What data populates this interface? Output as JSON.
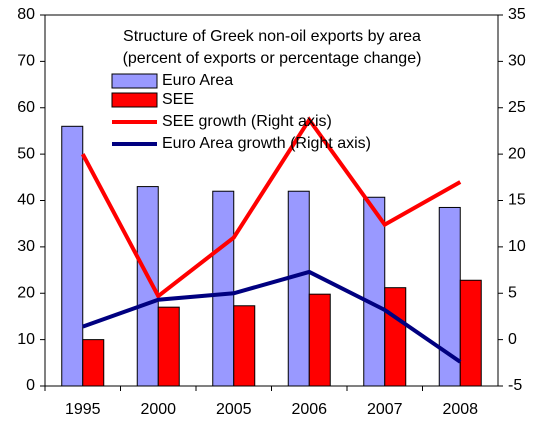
{
  "chart_data": {
    "type": "bar-line",
    "title": "Structure of Greek non-oil exports by area",
    "subtitle": "(percent of exports or percentage change)",
    "categories": [
      "1995",
      "2000",
      "2005",
      "2006",
      "2007",
      "2008"
    ],
    "series": [
      {
        "name": "Euro Area",
        "color": "#9999ff",
        "kind": "bar",
        "values": [
          56,
          43,
          42,
          42,
          40.7,
          38.5
        ]
      },
      {
        "name": "SEE",
        "color": "#ff0000",
        "kind": "bar",
        "values": [
          10,
          17,
          17.3,
          19.8,
          21.2,
          22.8
        ]
      },
      {
        "name": "SEE growth (Right axis)",
        "color": "#ff0000",
        "kind": "line",
        "axis": "y2",
        "values": [
          20,
          4.7,
          11,
          23.7,
          12.4,
          17
        ]
      },
      {
        "name": "Euro Area growth (Right axis)",
        "color": "#000080",
        "kind": "line",
        "axis": "y2",
        "values": [
          1.4,
          4.3,
          5,
          7.3,
          3.2,
          -2.4
        ]
      }
    ],
    "ylim": [
      0,
      80
    ],
    "yticks": [
      0,
      10,
      20,
      30,
      40,
      50,
      60,
      70,
      80
    ],
    "y2lim": [
      -5,
      35
    ],
    "y2ticks": [
      -5,
      0,
      5,
      10,
      15,
      20,
      25,
      30,
      35
    ]
  }
}
